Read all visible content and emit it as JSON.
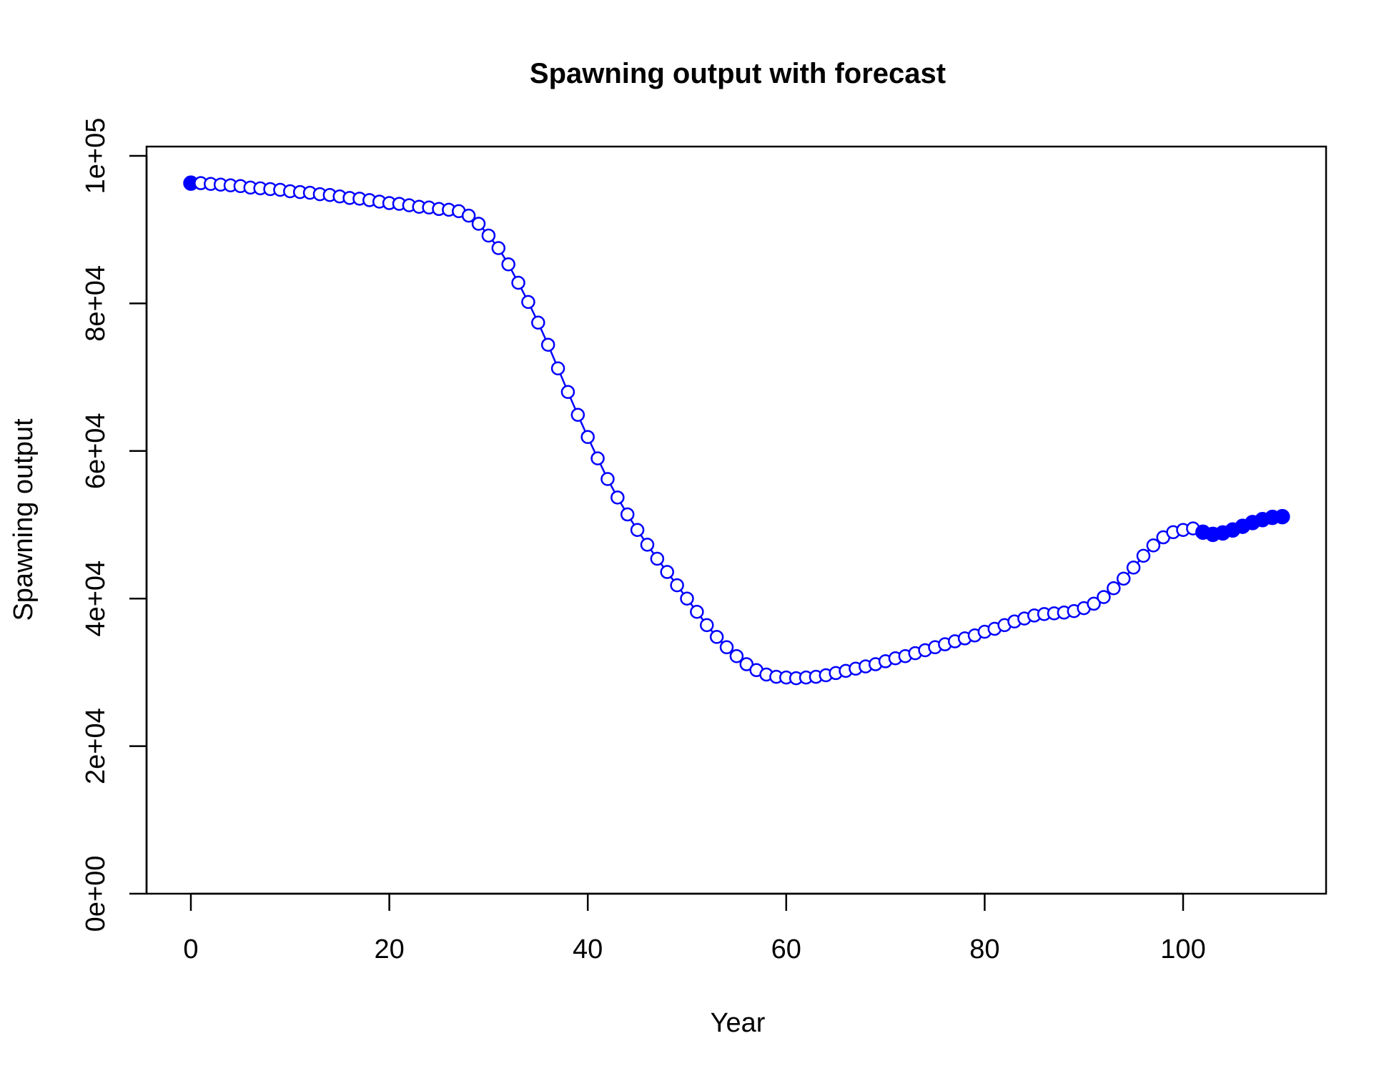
{
  "chart_data": {
    "type": "line",
    "title": "Spawning output with forecast",
    "xlabel": "Year",
    "ylabel": "Spawning output",
    "xlim": [
      -5,
      115
    ],
    "ylim": [
      0,
      101000
    ],
    "x_ticks": [
      0,
      20,
      40,
      60,
      80,
      100
    ],
    "x_tick_labels": [
      "0",
      "20",
      "40",
      "60",
      "80",
      "100"
    ],
    "y_ticks": [
      0,
      20000,
      40000,
      60000,
      80000,
      100000
    ],
    "y_tick_labels": [
      "0e+00",
      "2e+04",
      "4e+04",
      "6e+04",
      "8e+04",
      "1e+05"
    ],
    "grid": false,
    "legend": "none",
    "colors": {
      "series": "#0000ff",
      "axis": "#000000"
    },
    "series": [
      {
        "x": [
          0,
          1,
          2,
          3,
          4,
          5,
          6,
          7,
          8,
          9,
          10,
          11,
          12,
          13,
          14,
          15,
          16,
          17,
          18,
          19,
          20,
          21,
          22,
          23,
          24,
          25,
          26,
          27,
          28,
          29,
          30,
          31,
          32,
          33,
          34,
          35,
          36,
          37,
          38,
          39,
          40,
          41,
          42,
          43,
          44,
          45,
          46,
          47,
          48,
          49,
          50,
          51,
          52,
          53,
          54,
          55,
          56,
          57,
          58,
          59,
          60,
          61,
          62,
          63,
          64,
          65,
          66,
          67,
          68,
          69,
          70,
          71,
          72,
          73,
          74,
          75,
          76,
          77,
          78,
          79,
          80,
          81,
          82,
          83,
          84,
          85,
          86,
          87,
          88,
          89,
          90,
          91,
          92,
          93,
          94,
          95,
          96,
          97,
          98,
          99,
          100,
          101,
          102,
          103,
          104,
          105,
          106,
          107,
          108,
          109,
          110
        ],
        "y": [
          96300,
          96300,
          96200,
          96100,
          96000,
          95900,
          95700,
          95600,
          95500,
          95400,
          95200,
          95100,
          95000,
          94800,
          94700,
          94500,
          94300,
          94200,
          94000,
          93800,
          93600,
          93500,
          93300,
          93100,
          93000,
          92800,
          92700,
          92500,
          91900,
          90800,
          89200,
          87500,
          85300,
          82800,
          80200,
          77400,
          74400,
          71200,
          68000,
          64900,
          61900,
          59000,
          56200,
          53700,
          51400,
          49300,
          47300,
          45400,
          43600,
          41800,
          40000,
          38200,
          36400,
          34800,
          33400,
          32200,
          31100,
          30300,
          29700,
          29400,
          29300,
          29200,
          29300,
          29400,
          29600,
          29900,
          30200,
          30500,
          30800,
          31100,
          31500,
          31900,
          32200,
          32600,
          33000,
          33400,
          33800,
          34200,
          34600,
          35000,
          35500,
          35900,
          36400,
          36900,
          37300,
          37700,
          37900,
          38000,
          38100,
          38300,
          38700,
          39300,
          40200,
          41400,
          42700,
          44200,
          45800,
          47200,
          48300,
          49000,
          49300,
          49500,
          49000,
          48700,
          48900,
          49300,
          49800,
          50300,
          50700,
          51000,
          51100
        ],
        "filled": [
          true,
          false,
          false,
          false,
          false,
          false,
          false,
          false,
          false,
          false,
          false,
          false,
          false,
          false,
          false,
          false,
          false,
          false,
          false,
          false,
          false,
          false,
          false,
          false,
          false,
          false,
          false,
          false,
          false,
          false,
          false,
          false,
          false,
          false,
          false,
          false,
          false,
          false,
          false,
          false,
          false,
          false,
          false,
          false,
          false,
          false,
          false,
          false,
          false,
          false,
          false,
          false,
          false,
          false,
          false,
          false,
          false,
          false,
          false,
          false,
          false,
          false,
          false,
          false,
          false,
          false,
          false,
          false,
          false,
          false,
          false,
          false,
          false,
          false,
          false,
          false,
          false,
          false,
          false,
          false,
          false,
          false,
          false,
          false,
          false,
          false,
          false,
          false,
          false,
          false,
          false,
          false,
          false,
          false,
          false,
          false,
          false,
          false,
          false,
          false,
          false,
          false,
          true,
          true,
          true,
          true,
          true,
          true,
          true,
          true,
          true
        ]
      }
    ]
  }
}
